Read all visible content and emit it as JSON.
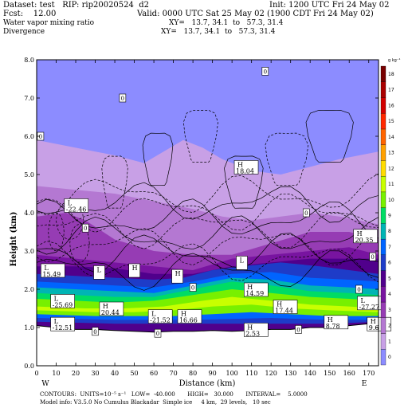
{
  "header": {
    "dataset_line": "Dataset: test   RIP: rip20020524  d2",
    "init_line": "Init: 1200 UTC Fri 24 May 02",
    "fcst_line": "Fcst:    12.00",
    "valid_line": "Valid: 0000 UTC Sat 25 May 02 (1900 CDT Fri 24 May 02)",
    "field1_name": "Water vapor mixing ratio",
    "field1_xy": "XY=   13.7, 34.1  to   57.3, 31.4",
    "field2_name": "Divergence",
    "field2_xy": "XY=   13.7, 34.1  to   57.3, 31.4"
  },
  "footer": {
    "contours_line": "CONTOURS:  UNITS=10⁻⁵ s⁻¹   LOW=  -40.000       HIGH=   30.000       INTERVAL=    5.0000",
    "model_line": "Model info: V3.5.0 No Cumulus Blackadar  Simple ice     4 km,  29 levels,   10 sec"
  },
  "chart_data": {
    "type": "heatmap",
    "title": "",
    "xlabel": "Distance (km)",
    "ylabel": "Height (km)",
    "xlim": [
      0,
      175
    ],
    "ylim": [
      0,
      8
    ],
    "x_ticks": [
      0,
      10,
      20,
      30,
      40,
      50,
      60,
      70,
      80,
      90,
      100,
      110,
      120,
      130,
      140,
      150,
      160,
      170
    ],
    "y_ticks": [
      "0.0",
      "1.0",
      "2.0",
      "3.0",
      "4.0",
      "5.0",
      "6.0",
      "7.0",
      "8.0"
    ],
    "left_endpoint": "W",
    "right_endpoint": "E",
    "colorbar": {
      "unit": "g kg⁻¹",
      "levels": [
        "0",
        "1",
        "2",
        "3",
        "4",
        "5",
        "6",
        "7",
        "8",
        "9",
        "10",
        "11",
        "12",
        "13",
        "14",
        "15",
        "16",
        "17",
        "18"
      ],
      "colors": [
        "#8c8cff",
        "#c8a0e6",
        "#b478d2",
        "#963cb4",
        "#7814a0",
        "#50008c",
        "#1e3cc8",
        "#0064ff",
        "#00b4b4",
        "#00dc64",
        "#78f000",
        "#c8ff00",
        "#ffdc00",
        "#ffa000",
        "#ff6400",
        "#ff2800",
        "#d20000",
        "#aa0000",
        "#780000"
      ]
    },
    "terrain_km": [
      [
        0,
        1.05
      ],
      [
        10,
        1.0
      ],
      [
        20,
        0.95
      ],
      [
        30,
        0.95
      ],
      [
        40,
        0.92
      ],
      [
        50,
        0.9
      ],
      [
        60,
        0.88
      ],
      [
        70,
        0.9
      ],
      [
        80,
        0.9
      ],
      [
        90,
        0.92
      ],
      [
        100,
        0.9
      ],
      [
        110,
        0.92
      ],
      [
        120,
        0.95
      ],
      [
        130,
        0.95
      ],
      [
        140,
        1.0
      ],
      [
        150,
        1.0
      ],
      [
        160,
        1.05
      ],
      [
        170,
        1.1
      ],
      [
        175,
        1.1
      ]
    ],
    "annotations": [
      {
        "type": "L",
        "value": "-22.46",
        "x": 15,
        "y": 4.2
      },
      {
        "type": "H",
        "value": "18.04",
        "x": 102,
        "y": 5.2
      },
      {
        "type": "H",
        "value": "20.35",
        "x": 163,
        "y": 3.4
      },
      {
        "type": "L",
        "value": "",
        "x": 103,
        "y": 2.7
      },
      {
        "type": "H",
        "value": "14.59",
        "x": 107,
        "y": 2.0
      },
      {
        "type": "H",
        "value": "17.44",
        "x": 122,
        "y": 1.55
      },
      {
        "type": "L",
        "value": "-27.27",
        "x": 165,
        "y": 1.65
      },
      {
        "type": "H",
        "value": "8.78",
        "x": 148,
        "y": 1.15
      },
      {
        "type": "H",
        "value": "9.6",
        "x": 170,
        "y": 1.1
      },
      {
        "type": "H",
        "value": "2.53",
        "x": 107,
        "y": 0.95
      },
      {
        "type": "H",
        "value": "16.66",
        "x": 73,
        "y": 1.3
      },
      {
        "type": "L",
        "value": "-21.52",
        "x": 58,
        "y": 1.3
      },
      {
        "type": "H",
        "value": "20.44",
        "x": 33,
        "y": 1.5
      },
      {
        "type": "L",
        "value": "-25.69",
        "x": 8,
        "y": 1.7
      },
      {
        "type": "L",
        "value": "-12.51",
        "x": 8,
        "y": 1.1
      },
      {
        "type": "L",
        "value": "15.49",
        "x": 3,
        "y": 2.5
      },
      {
        "type": "L",
        "value": "",
        "x": 30,
        "y": 2.45
      },
      {
        "type": "H",
        "value": "",
        "x": 48,
        "y": 2.5
      },
      {
        "type": "H",
        "value": "",
        "x": 70,
        "y": 2.35
      }
    ],
    "zero_labels": [
      {
        "x": 2,
        "y": 6.0
      },
      {
        "x": 44,
        "y": 7.0
      },
      {
        "x": 117,
        "y": 7.7
      },
      {
        "x": 25,
        "y": 3.6
      },
      {
        "x": 138,
        "y": 4.0
      },
      {
        "x": 172,
        "y": 2.85
      },
      {
        "x": 80,
        "y": 2.05
      },
      {
        "x": 165,
        "y": 2.0
      },
      {
        "x": 30,
        "y": 0.9
      },
      {
        "x": 62,
        "y": 0.85
      },
      {
        "x": 134,
        "y": 0.95
      }
    ]
  }
}
